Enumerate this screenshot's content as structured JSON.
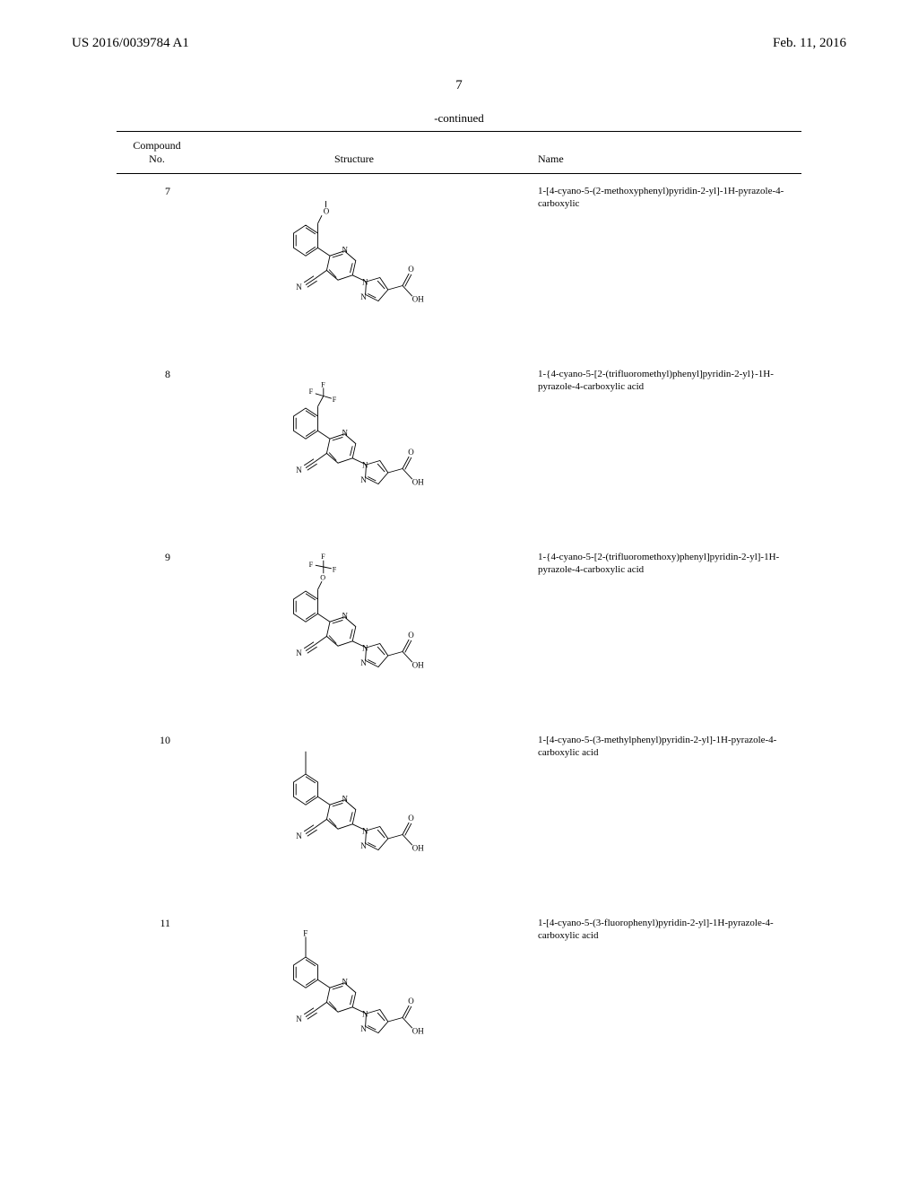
{
  "header": {
    "pub_number": "US 2016/0039784 A1",
    "pub_date": "Feb. 11, 2016"
  },
  "page_number": "7",
  "table": {
    "continued_label": "-continued",
    "columns": {
      "no_header_line1": "Compound",
      "no_header_line2": "No.",
      "structure_header": "Structure",
      "name_header": "Name"
    },
    "rows": [
      {
        "no": "7",
        "name": "1-[4-cyano-5-(2-methoxyphenyl)pyridin-2-yl]-1H-pyrazole-4-carboxylic",
        "substituent": "OCH3",
        "position": "ortho"
      },
      {
        "no": "8",
        "name": "1-{4-cyano-5-[2-(trifluoromethyl)phenyl]pyridin-2-yl}-1H-pyrazole-4-carboxylic acid",
        "substituent": "CF3",
        "position": "ortho"
      },
      {
        "no": "9",
        "name": "1-{4-cyano-5-[2-(trifluoromethoxy)phenyl]pyridin-2-yl]-1H-pyrazole-4-carboxylic acid",
        "substituent": "OCF3",
        "position": "ortho"
      },
      {
        "no": "10",
        "name": "1-[4-cyano-5-(3-methylphenyl)pyridin-2-yl]-1H-pyrazole-4-carboxylic acid",
        "substituent": "CH3",
        "position": "meta"
      },
      {
        "no": "11",
        "name": "1-[4-cyano-5-(3-fluorophenyl)pyridin-2-yl]-1H-pyrazole-4-carboxylic acid",
        "substituent": "F",
        "position": "meta"
      }
    ]
  },
  "styling": {
    "font_family": "Times New Roman",
    "header_font_size": 15,
    "page_number_font_size": 15,
    "table_header_font_size": 12,
    "compound_no_font_size": 12,
    "compound_name_font_size": 11,
    "text_color": "#000000",
    "background_color": "#ffffff",
    "border_color": "#000000",
    "structure_stroke": "#000000",
    "structure_stroke_width": 1
  }
}
